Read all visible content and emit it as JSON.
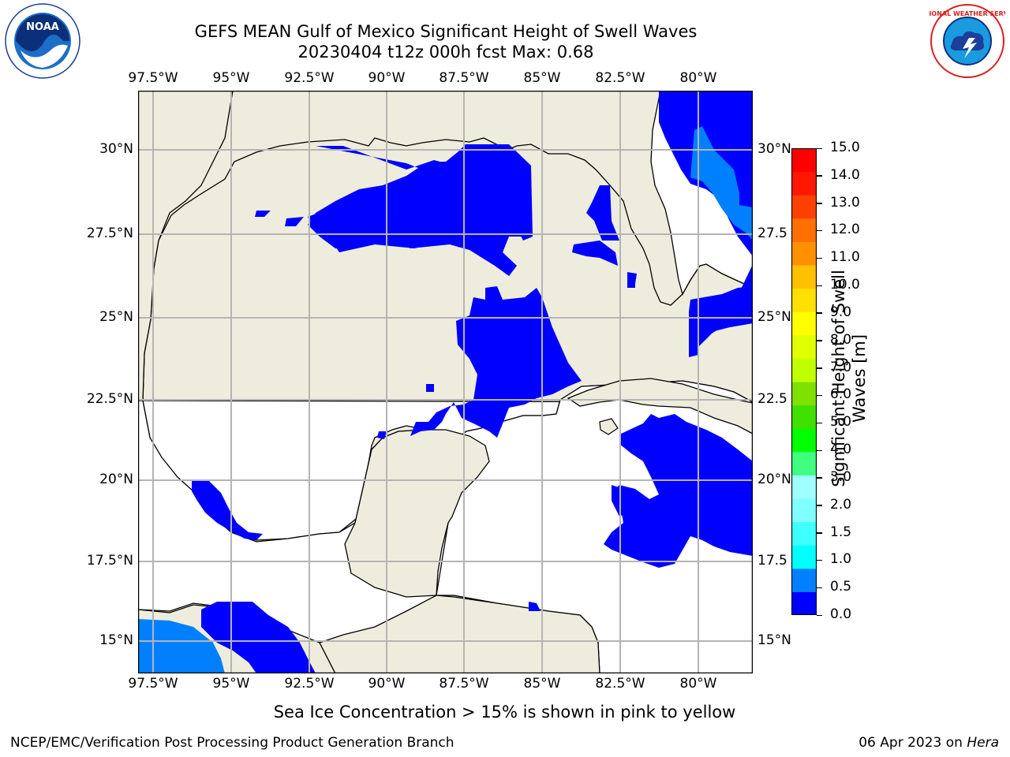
{
  "title": {
    "line1": "GEFS MEAN Gulf of Mexico Significant Height of Swell Waves",
    "line2": "20230404 t12z 000h fcst   Max: 0.68"
  },
  "map": {
    "lon_labels": [
      "97.5°W",
      "95°W",
      "92.5°W",
      "90°W",
      "87.5°W",
      "85°W",
      "82.5°W",
      "80°W"
    ],
    "lat_labels_left": [
      "30°N",
      "27.5°N",
      "25°N",
      "22.5°N",
      "20°N",
      "17.5°N",
      "15°N"
    ],
    "lat_labels_right": [
      "30°N",
      "27.5",
      "25°N",
      "22.5",
      "20°N",
      "17.5",
      "15°N"
    ],
    "colors": {
      "land": "#eeeddd",
      "ocean": "#ffffff",
      "grid": "#b4b4b4",
      "coast": "#000000"
    }
  },
  "colorbar": {
    "label_line1": "Significant Height of Swell",
    "label_line2": "Waves [m]",
    "ticks": [
      "15.0",
      "14.0",
      "13.0",
      "12.0",
      "11.0",
      "10.0",
      "9.0",
      "8.0",
      "7.0",
      "6.0",
      "5.0",
      "4.0",
      "3.0",
      "2.0",
      "1.5",
      "1.0",
      "0.5",
      "0.0"
    ],
    "bands": [
      "#0000ff",
      "#0080ff",
      "#00ffff",
      "#40ffff",
      "#80ffff",
      "#a0ffff",
      "#40ff80",
      "#00ff00",
      "#40e000",
      "#80e000",
      "#c0ff00",
      "#e0ff00",
      "#ffff00",
      "#ffe000",
      "#ffc000",
      "#ff9000",
      "#ff7000",
      "#ff4000",
      "#ff1800",
      "#ff0000"
    ]
  },
  "logos": {
    "noaa_text": "NOAA",
    "nws_text": "NATIONAL WEATHER SERVICE"
  },
  "note": "Sea Ice Concentration > 15% is shown in pink to yellow",
  "footer": {
    "left": "NCEP/EMC/Verification Post Processing Product Generation Branch",
    "date": "06 Apr 2023 on ",
    "host": "Hera"
  }
}
